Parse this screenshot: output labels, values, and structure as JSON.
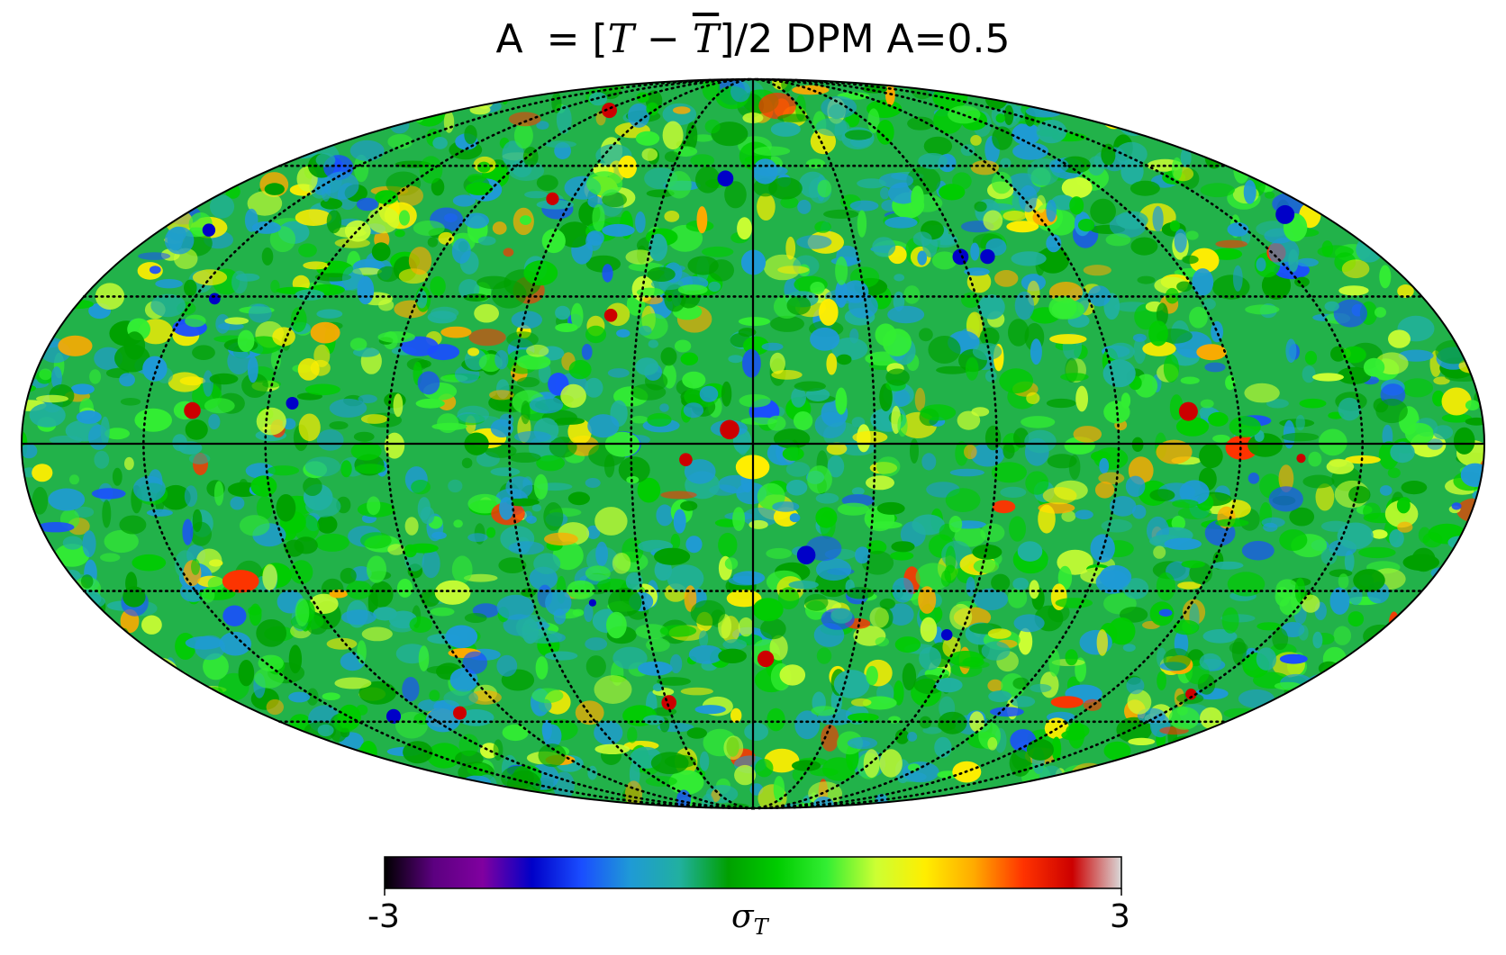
{
  "title": {
    "lhs": "A",
    "eq": "= [",
    "t1": "T",
    "minus": " − ",
    "t2": "T",
    "tail": "]/2  DPM A=0.5"
  },
  "map": {
    "projection": "Mollweide",
    "graticule": "dotted",
    "colormap": [
      "#000000",
      "#5c0080",
      "#8000a0",
      "#0000c8",
      "#1a4dff",
      "#1f9ad6",
      "#21b0a0",
      "#00a000",
      "#00cc00",
      "#33ee33",
      "#ccff33",
      "#ffee00",
      "#ffaa00",
      "#ff3300",
      "#cc0000",
      "#d9d9d9"
    ]
  },
  "colorbar": {
    "min_label": "-3",
    "max_label": "3",
    "quantity": "σ",
    "quantity_sub": "T",
    "min": -3,
    "max": 3
  }
}
